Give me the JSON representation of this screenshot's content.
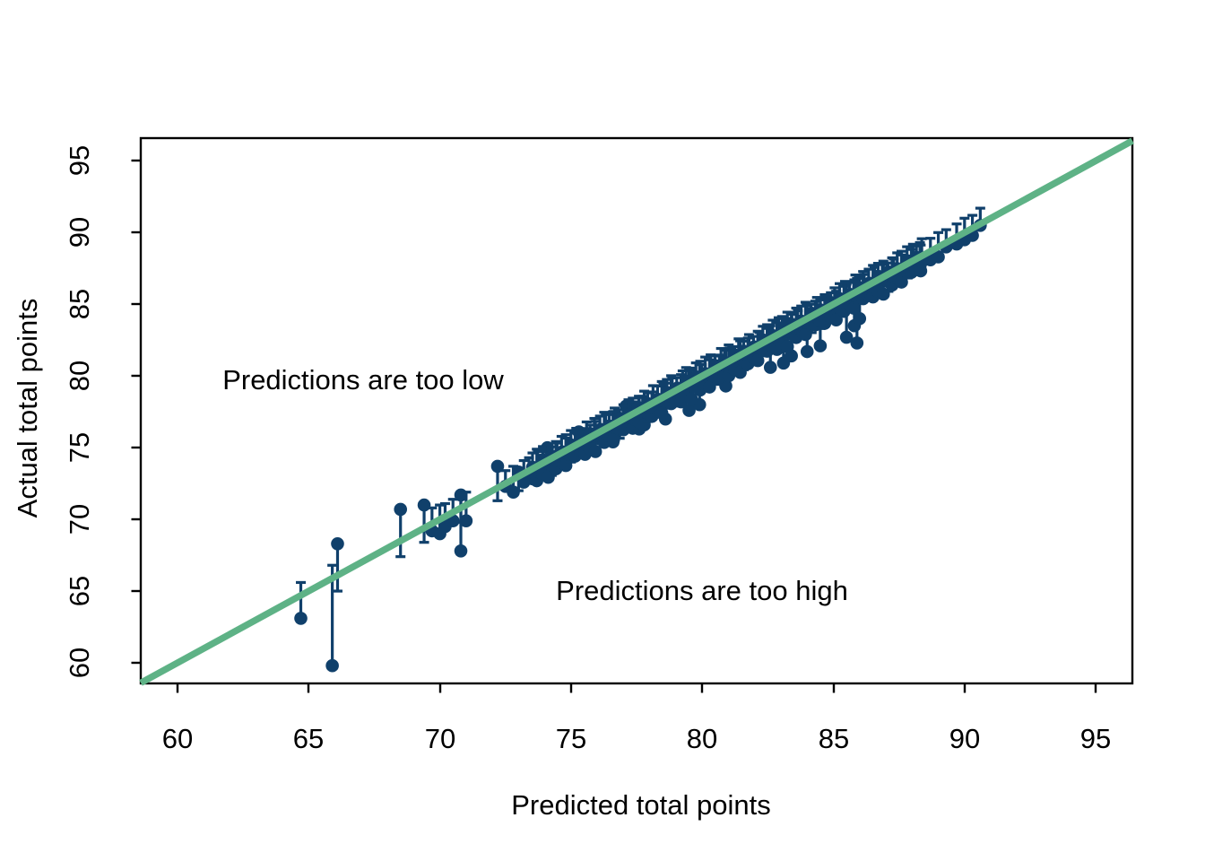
{
  "chart_data": {
    "type": "scatter",
    "title": "",
    "xlabel": "Predicted total points",
    "ylabel": "Actual total points",
    "xlim": [
      58.6,
      96.4
    ],
    "ylim": [
      58.6,
      96.4
    ],
    "grid": false,
    "x_ticks": [
      "60",
      "65",
      "70",
      "75",
      "80",
      "85",
      "90",
      "95"
    ],
    "y_ticks": [
      "60",
      "65",
      "70",
      "75",
      "80",
      "85",
      "90",
      "95"
    ],
    "annotations": [
      {
        "text": "Predictions are too low",
        "x": 67.1,
        "y": 79.7
      },
      {
        "text": "Predictions are too high",
        "x": 80.0,
        "y": 65.0
      }
    ],
    "identity_line": {
      "from": 58.6,
      "to": 96.4,
      "color": "#5eb286",
      "width": 7.5
    },
    "point_style": {
      "color": "#10406b",
      "radius": 7.3
    },
    "interval_style": {
      "color": "#10406b",
      "line_width": 3.2,
      "cap_half_width": 5.5
    },
    "points": [
      [
        64.7,
        63.1,
        65.6
      ],
      [
        65.9,
        59.8,
        66.8
      ],
      [
        66.1,
        68.3,
        65.0
      ],
      [
        68.5,
        70.7,
        67.4
      ],
      [
        69.4,
        71.0,
        68.4
      ],
      [
        69.7,
        69.2,
        70.8
      ],
      [
        70.0,
        69.0,
        71.0
      ],
      [
        70.2,
        69.5,
        71.1
      ],
      [
        70.5,
        69.9,
        71.4
      ],
      [
        70.8,
        71.7,
        69.8
      ],
      [
        70.8,
        67.8,
        71.9
      ],
      [
        71.0,
        69.9,
        71.9
      ],
      [
        72.2,
        73.7,
        71.3
      ],
      [
        72.5,
        72.3,
        73.4
      ],
      [
        72.8,
        71.9,
        73.7
      ],
      [
        73.0,
        73.3,
        72.0
      ],
      [
        73.2,
        72.6,
        74.1
      ],
      [
        74.1,
        75.0,
        73.2
      ],
      [
        75.3,
        76.1,
        74.4
      ],
      [
        77.1,
        77.9,
        76.2
      ],
      [
        76.6,
        75.4,
        77.5
      ],
      [
        77.6,
        76.3,
        78.5
      ],
      [
        78.6,
        77.0,
        79.5
      ],
      [
        79.5,
        77.6,
        80.4
      ],
      [
        79.9,
        78.0,
        80.8
      ],
      [
        80.9,
        79.3,
        81.8
      ],
      [
        82.6,
        80.6,
        83.5
      ],
      [
        83.1,
        80.9,
        84.0
      ],
      [
        83.4,
        81.4,
        84.3
      ],
      [
        84.0,
        81.7,
        84.9
      ],
      [
        84.5,
        82.1,
        85.4
      ],
      [
        85.5,
        82.7,
        86.4
      ],
      [
        85.9,
        82.3,
        86.8
      ],
      [
        85.8,
        83.5,
        86.7
      ],
      [
        86.0,
        84.0,
        86.9
      ],
      [
        88.3,
        87.6,
        89.3
      ],
      [
        88.7,
        88.1,
        89.6
      ],
      [
        89.0,
        88.3,
        90.0
      ],
      [
        89.3,
        89.0,
        90.2
      ],
      [
        89.7,
        89.2,
        90.6
      ],
      [
        90.0,
        89.5,
        91.0
      ],
      [
        90.3,
        89.8,
        91.2
      ],
      [
        90.6,
        90.5,
        91.7
      ]
    ],
    "band": {
      "x_start": 73.4,
      "x_end": 88.4,
      "count": 165,
      "x_jitter_cycle": [
        0,
        0.04,
        -0.05,
        0.02,
        -0.03,
        0.05,
        -0.02,
        0.03
      ],
      "residual_cycle": [
        -0.3,
        -0.7,
        0.1,
        -1.0,
        -0.4,
        0.25,
        -0.8,
        -0.15,
        -1.2,
        -0.5,
        0.15,
        -0.9,
        -0.35,
        -0.65,
        0.05,
        -1.05,
        -0.25,
        -0.55,
        0.2,
        -0.75
      ],
      "cap_cycle": [
        0.9,
        1.1,
        0.8,
        1.2,
        1.0,
        0.85,
        1.15
      ]
    }
  }
}
